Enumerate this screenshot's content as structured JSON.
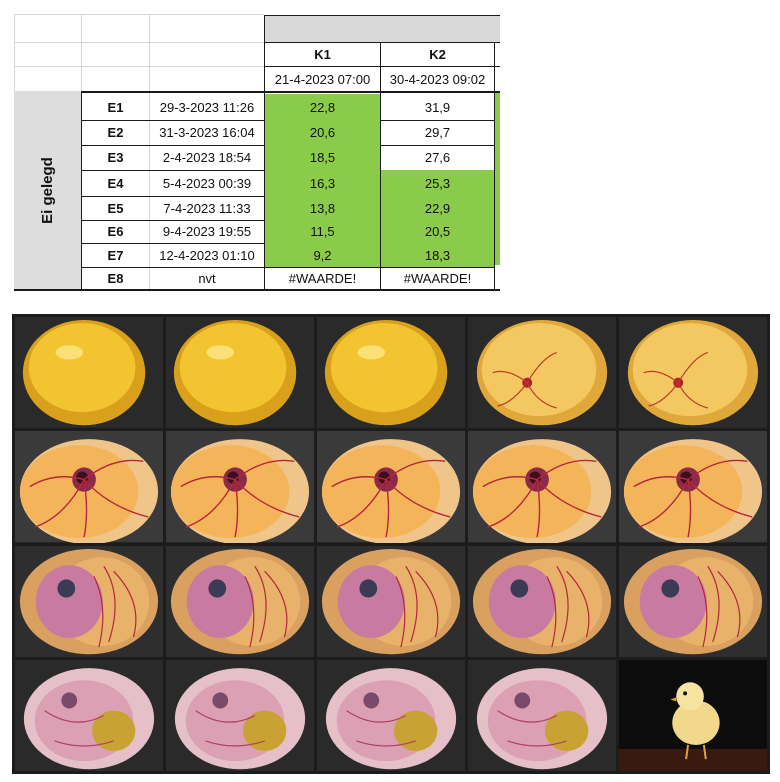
{
  "sheet": {
    "row_group_label": "Ei gelegd",
    "columns": [
      {
        "name": "K1",
        "date": "21-4-2023 07:00"
      },
      {
        "name": "K2",
        "date": "30-4-2023 09:02"
      }
    ],
    "rows": [
      {
        "id": "E1",
        "date": "29-3-2023 11:26",
        "k1": "22,8",
        "k2": "31,9",
        "k1_green": true,
        "k2_green": false
      },
      {
        "id": "E2",
        "date": "31-3-2023 16:04",
        "k1": "20,6",
        "k2": "29,7",
        "k1_green": true,
        "k2_green": false
      },
      {
        "id": "E3",
        "date": "2-4-2023 18:54",
        "k1": "18,5",
        "k2": "27,6",
        "k1_green": true,
        "k2_green": false
      },
      {
        "id": "E4",
        "date": "5-4-2023 00:39",
        "k1": "16,3",
        "k2": "25,3",
        "k1_green": true,
        "k2_green": true
      },
      {
        "id": "E5",
        "date": "7-4-2023 11:33",
        "k1": "13,8",
        "k2": "22,9",
        "k1_green": true,
        "k2_green": true
      },
      {
        "id": "E6",
        "date": "9-4-2023 19:55",
        "k1": "11,5",
        "k2": "20,5",
        "k1_green": true,
        "k2_green": true
      },
      {
        "id": "E7",
        "date": "12-4-2023 01:10",
        "k1": "9,2",
        "k2": "18,3",
        "k1_green": true,
        "k2_green": true
      },
      {
        "id": "E8",
        "date": "nvt",
        "k1": "#WAARDE!",
        "k2": "#WAARDE!",
        "k1_green": false,
        "k2_green": false
      }
    ],
    "green_color": "#8bcb4a"
  },
  "photos": {
    "count": 20,
    "description_kind": "chick embryo development stages, last one a hatched chick",
    "stages": [
      {
        "kind": "yolk"
      },
      {
        "kind": "yolk"
      },
      {
        "kind": "yolk"
      },
      {
        "kind": "vessels"
      },
      {
        "kind": "vessels"
      },
      {
        "kind": "embryo"
      },
      {
        "kind": "embryo"
      },
      {
        "kind": "embryo"
      },
      {
        "kind": "embryo"
      },
      {
        "kind": "embryo"
      },
      {
        "kind": "late"
      },
      {
        "kind": "late"
      },
      {
        "kind": "late"
      },
      {
        "kind": "late"
      },
      {
        "kind": "late"
      },
      {
        "kind": "fetus"
      },
      {
        "kind": "fetus"
      },
      {
        "kind": "fetus"
      },
      {
        "kind": "fetus"
      },
      {
        "kind": "chick"
      }
    ]
  }
}
